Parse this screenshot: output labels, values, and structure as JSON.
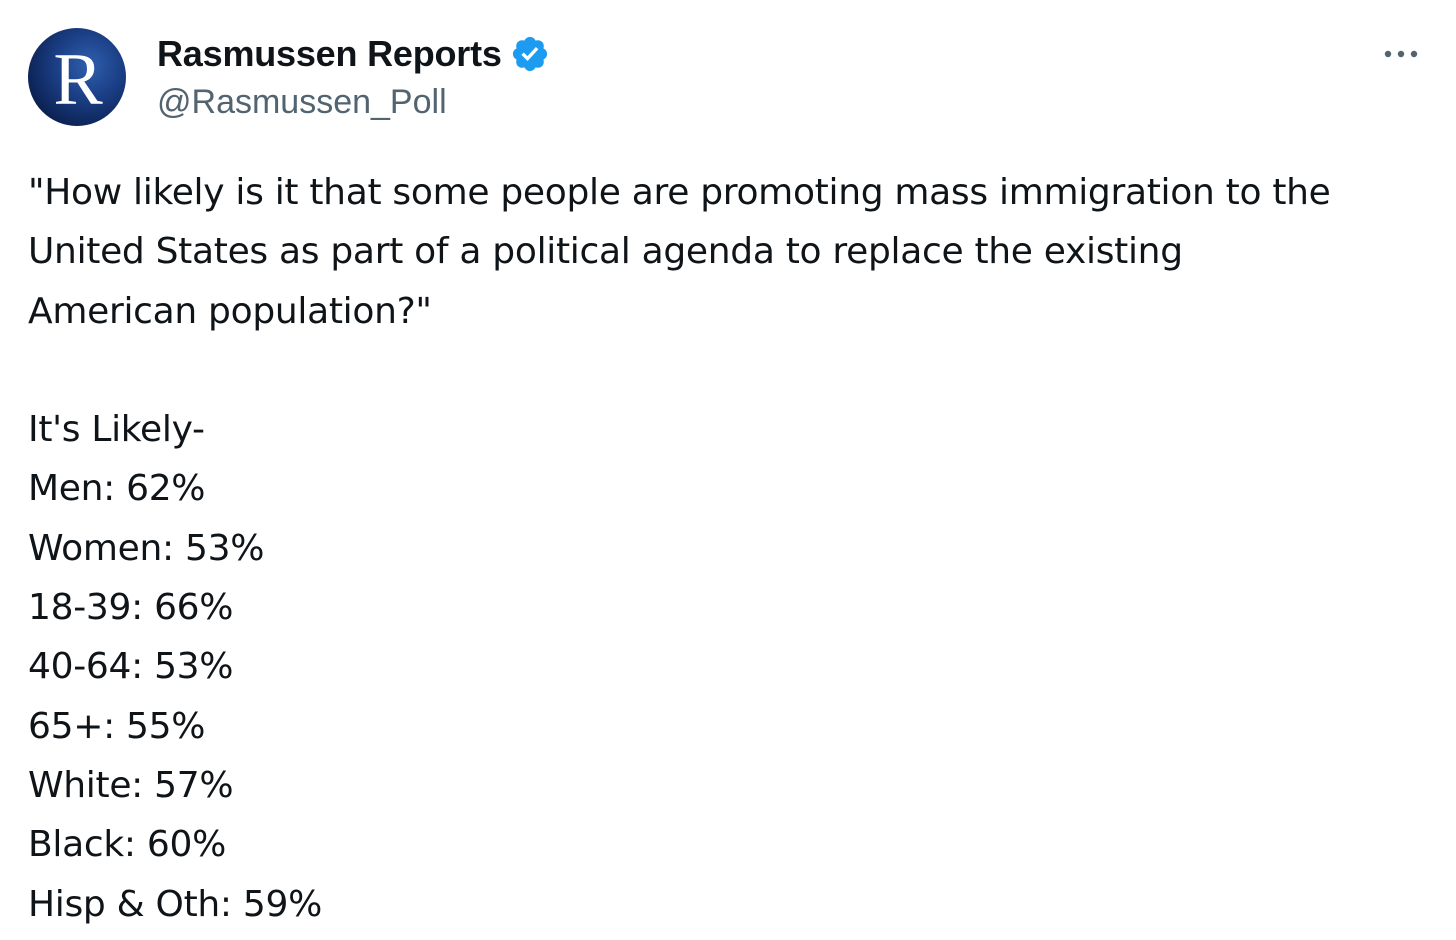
{
  "author": {
    "display_name": "Rasmussen Reports",
    "handle": "@Rasmussen_Poll",
    "avatar_letter": "R",
    "verified": true,
    "verified_color": "#1d9bf0",
    "avatar_colors": [
      "#2f5fae",
      "#0d2457"
    ]
  },
  "more_button": {
    "icon": "more-horizontal-icon"
  },
  "tweet": {
    "question_lines": [
      "\"How likely is it that some people are promoting mass immigration to the",
      "United States as part of a political agenda to replace the existing",
      "American population?\""
    ],
    "results_heading": "It's Likely-",
    "results": [
      "Men: 62%",
      "Women: 53%",
      "18-39: 66%",
      "40-64: 53%",
      "65+: 55%",
      "White: 57%",
      "Black: 60%",
      "Hisp & Oth: 59%"
    ]
  },
  "colors": {
    "text": "#0f1419",
    "secondary_text": "#536471",
    "background": "#ffffff"
  }
}
